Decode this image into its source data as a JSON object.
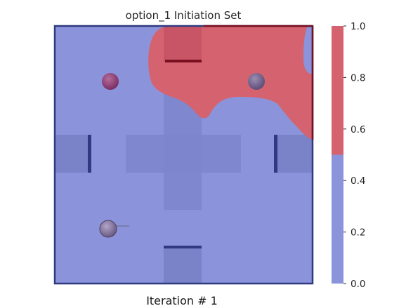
{
  "title": "option_1 Initiation Set",
  "caption": "Iteration # 1",
  "chart_data": {
    "type": "heatmap",
    "title": "option_1 Initiation Set",
    "colormap": {
      "name": "two-level (binary)",
      "low_color": "#8b93da",
      "high_color": "#d4636f",
      "vmin": 0.0,
      "vmax": 1.0,
      "threshold": 0.5
    },
    "colorbar": {
      "ticks": [
        0.0,
        0.2,
        0.4,
        0.6,
        0.8,
        1.0
      ],
      "tick_labels": [
        "0.0",
        "0.2",
        "0.4",
        "0.6",
        "0.8",
        "1.0"
      ],
      "placement": "right"
    },
    "regions": [
      {
        "label": "upper-right area",
        "value": 1.0
      },
      {
        "label": "rest of environment",
        "value": 0.0
      }
    ],
    "overlay": "four-room maze with three spheres",
    "grid": false
  }
}
